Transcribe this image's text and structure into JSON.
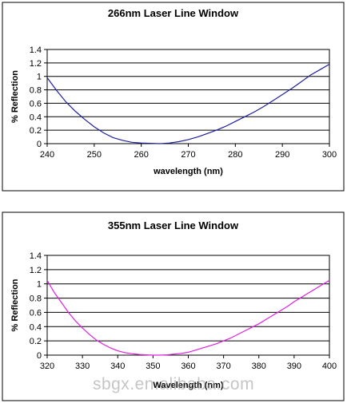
{
  "chart_data": [
    {
      "type": "line",
      "title": "266nm Laser Line Window",
      "xlabel": "wavelength (nm)",
      "ylabel": "% Reflection",
      "xlim": [
        240,
        300
      ],
      "ylim": [
        0,
        1.4
      ],
      "x_ticks": [
        "240",
        "250",
        "260",
        "270",
        "280",
        "290",
        "300"
      ],
      "y_ticks": [
        "0",
        "0.2",
        "0.4",
        "0.6",
        "0.8",
        "1",
        "1.2",
        "1.4"
      ],
      "grid": "horizontal",
      "series": [
        {
          "color": "#1f1fa0",
          "x": [
            240,
            242,
            244,
            246,
            248,
            250,
            252,
            254,
            256,
            258,
            260,
            262,
            264,
            266,
            268,
            270,
            272,
            274,
            276,
            278,
            280,
            282,
            284,
            286,
            288,
            290,
            292,
            294,
            296,
            298,
            300
          ],
          "y": [
            0.98,
            0.79,
            0.62,
            0.48,
            0.36,
            0.25,
            0.16,
            0.09,
            0.05,
            0.02,
            0.01,
            0.005,
            0.0,
            0.01,
            0.03,
            0.06,
            0.1,
            0.15,
            0.2,
            0.26,
            0.33,
            0.4,
            0.47,
            0.55,
            0.64,
            0.73,
            0.82,
            0.92,
            1.02,
            1.1,
            1.18
          ]
        }
      ]
    },
    {
      "type": "line",
      "title": "355nm Laser Line Window",
      "xlabel": "Wavelength (nm)",
      "ylabel": "% Reflection",
      "xlim": [
        320,
        400
      ],
      "ylim": [
        0,
        1.4
      ],
      "x_ticks": [
        "320",
        "330",
        "340",
        "350",
        "360",
        "370",
        "380",
        "390",
        "400"
      ],
      "y_ticks": [
        "0",
        "0.2",
        "0.4",
        "0.6",
        "0.8",
        "1",
        "1.2",
        "1.4"
      ],
      "grid": "horizontal",
      "series": [
        {
          "color": "#e020e0",
          "x": [
            320,
            322,
            324,
            326,
            328,
            330,
            332,
            334,
            336,
            338,
            340,
            342,
            344,
            346,
            348,
            350,
            352,
            354,
            356,
            358,
            360,
            362,
            364,
            366,
            368,
            370,
            372,
            374,
            376,
            378,
            380,
            382,
            384,
            386,
            388,
            390,
            392,
            394,
            396,
            398,
            400
          ],
          "y": [
            1.05,
            0.88,
            0.74,
            0.6,
            0.48,
            0.38,
            0.29,
            0.21,
            0.15,
            0.1,
            0.06,
            0.035,
            0.02,
            0.01,
            0.005,
            0.0,
            0.0,
            0.005,
            0.015,
            0.025,
            0.04,
            0.07,
            0.1,
            0.13,
            0.16,
            0.2,
            0.24,
            0.29,
            0.34,
            0.39,
            0.44,
            0.5,
            0.56,
            0.62,
            0.68,
            0.75,
            0.81,
            0.87,
            0.93,
            0.99,
            1.05
          ]
        }
      ]
    }
  ],
  "watermark": "sbgx.en.alibaba.com"
}
